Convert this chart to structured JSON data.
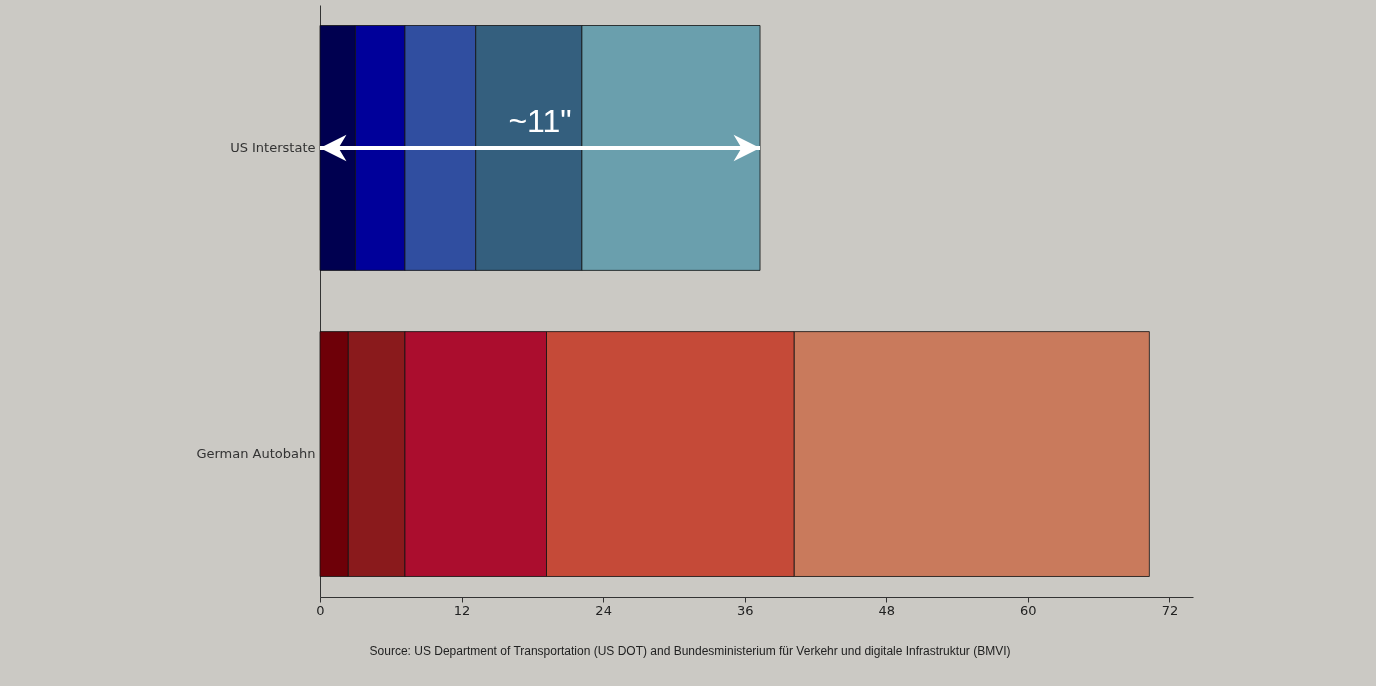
{
  "chart_data": {
    "type": "bar",
    "orientation": "horizontal",
    "stacked": true,
    "categories": [
      "US Interstate",
      "German Autobahn"
    ],
    "series": [
      {
        "colors": [
          "#000050",
          "#6e0008"
        ],
        "values": [
          3.0,
          2.4
        ]
      },
      {
        "colors": [
          "#00009a",
          "#8a1a1c"
        ],
        "values": [
          4.2,
          4.8
        ]
      },
      {
        "colors": [
          "#304ea0",
          "#ab0d2e"
        ],
        "values": [
          6.0,
          12.0
        ]
      },
      {
        "colors": [
          "#345f7e",
          "#c54a38"
        ],
        "values": [
          9.0,
          21.0
        ]
      },
      {
        "colors": [
          "#6a9fad",
          "#c97a5c"
        ],
        "values": [
          15.1,
          30.1
        ]
      }
    ],
    "xlim": [
      0,
      74
    ],
    "xticks": [
      0,
      12,
      24,
      36,
      48,
      60,
      72
    ],
    "annotations": [
      "~11\"",
      "Source: US Department of Transportation (US DOT) and Bundesministerium für Verkehr und digitale Infrastruktur (BMVI)"
    ]
  }
}
